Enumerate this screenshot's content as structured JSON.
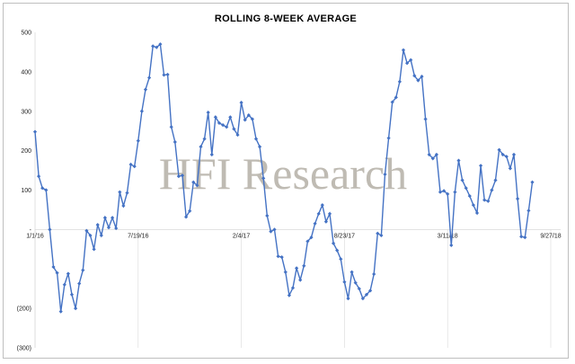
{
  "chart_data": {
    "type": "line",
    "title": "ROLLING 8-WEEK AVERAGE",
    "xlabel": "",
    "ylabel": "",
    "ylim": [
      -300,
      500
    ],
    "yticks": [
      500,
      400,
      300,
      200,
      100,
      0,
      -200,
      -300
    ],
    "yticklabels": [
      "500",
      "400",
      "300",
      "200",
      "100",
      "-",
      "(200)",
      "(300)"
    ],
    "xticklabels": [
      "1/1/16",
      "7/19/16",
      "2/4/17",
      "8/23/17",
      "3/11/18",
      "9/27/18"
    ],
    "x_tick_index": [
      0,
      28,
      56,
      84,
      112,
      140
    ],
    "grid": false,
    "line_color": "#4472c4",
    "marker": "diamond",
    "watermark": "HFI Research",
    "series": [
      {
        "values": [
          248,
          135,
          105,
          100,
          0,
          -95,
          -110,
          -208,
          -140,
          -112,
          -165,
          -200,
          -137,
          -103,
          -3,
          -15,
          -50,
          12,
          -15,
          30,
          5,
          30,
          3,
          95,
          60,
          93,
          165,
          160,
          225,
          300,
          355,
          385,
          465,
          462,
          470,
          392,
          393,
          260,
          222,
          135,
          137,
          32,
          47,
          120,
          112,
          210,
          230,
          297,
          190,
          285,
          270,
          265,
          260,
          285,
          255,
          240,
          322,
          278,
          290,
          280,
          230,
          210,
          130,
          35,
          -5,
          0,
          -68,
          -70,
          -108,
          -167,
          -148,
          -98,
          -128,
          -92,
          -30,
          -20,
          15,
          40,
          62,
          20,
          40,
          -35,
          -53,
          -75,
          -133,
          -175,
          -108,
          -135,
          -150,
          -175,
          -165,
          -155,
          -113,
          -10,
          -15,
          140,
          232,
          323,
          335,
          375,
          455,
          422,
          430,
          390,
          378,
          388,
          280,
          190,
          180,
          190,
          95,
          98,
          90,
          -40,
          95,
          175,
          125,
          105,
          85,
          62,
          42,
          162,
          75,
          72,
          100,
          125,
          202,
          190,
          185,
          155,
          190,
          78,
          -18,
          -20,
          48,
          120
        ]
      }
    ]
  }
}
